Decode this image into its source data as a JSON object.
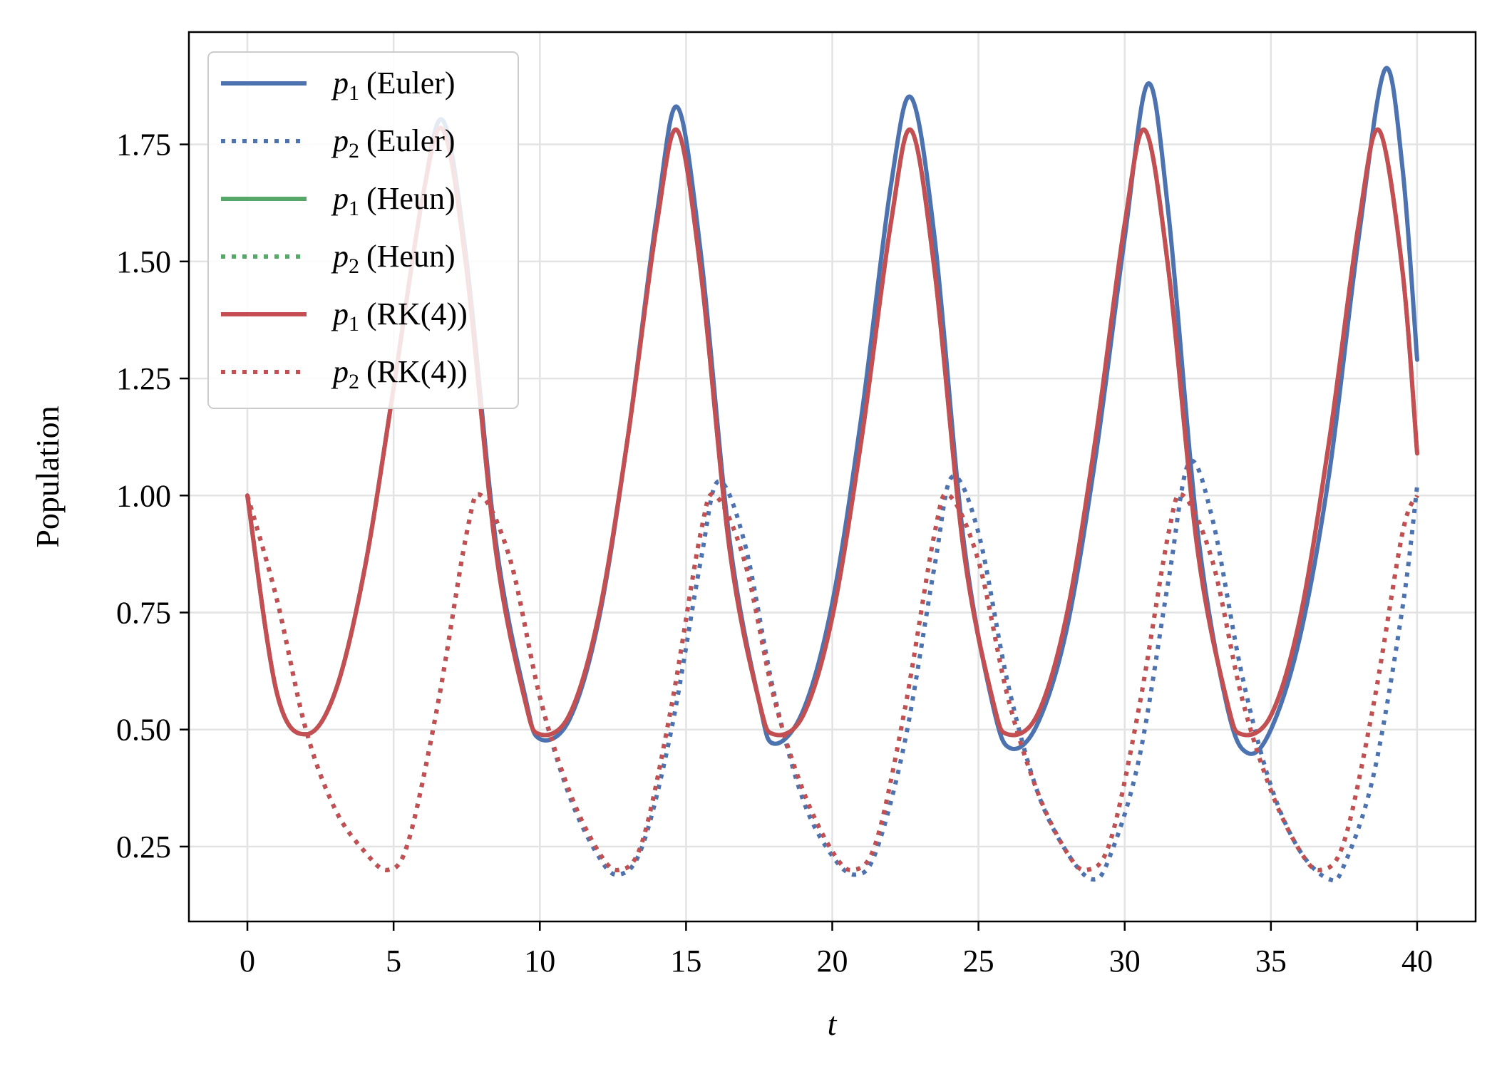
{
  "chart_data": {
    "type": "line",
    "title": "",
    "xlabel": "t",
    "ylabel": "Population",
    "xlim": [
      -2,
      42
    ],
    "ylim": [
      0.09,
      1.99
    ],
    "xticks": [
      0,
      5,
      10,
      15,
      20,
      25,
      30,
      35,
      40
    ],
    "xtick_labels": [
      "0",
      "5",
      "10",
      "15",
      "20",
      "25",
      "30",
      "35",
      "40"
    ],
    "yticks": [
      0.25,
      0.5,
      0.75,
      1.0,
      1.25,
      1.5,
      1.75
    ],
    "ytick_labels": [
      "0.25",
      "0.50",
      "0.75",
      "1.00",
      "1.25",
      "1.50",
      "1.75"
    ],
    "grid": true,
    "legend_position": "top-left",
    "colors": {
      "Euler": "#4c72b0",
      "Heun": "#55a868",
      "RK4": "#c44e52"
    },
    "series": [
      {
        "name": "p1 (Euler)",
        "var": "p",
        "sub": "1",
        "method": "(Euler)",
        "color": "#4c72b0",
        "style": "solid",
        "x": [
          0,
          1,
          2,
          3,
          4,
          5,
          6,
          6.7,
          7.5,
          8.5,
          9.5,
          10,
          11,
          12,
          13,
          14,
          14.7,
          15.5,
          16.5,
          17.5,
          18,
          19,
          20,
          21,
          22,
          22.7,
          23.5,
          24.5,
          25.5,
          26.1,
          27,
          28,
          29,
          30,
          30.8,
          31.5,
          32.5,
          33.5,
          34.2,
          35,
          36,
          37,
          38,
          38.9,
          39.5,
          40
        ],
        "y": [
          1.0,
          0.58,
          0.49,
          0.58,
          0.84,
          1.23,
          1.64,
          1.8,
          1.5,
          0.9,
          0.57,
          0.48,
          0.52,
          0.73,
          1.12,
          1.6,
          1.83,
          1.52,
          0.9,
          0.56,
          0.47,
          0.54,
          0.77,
          1.17,
          1.66,
          1.85,
          1.55,
          0.9,
          0.55,
          0.46,
          0.51,
          0.71,
          1.08,
          1.55,
          1.88,
          1.6,
          0.92,
          0.55,
          0.45,
          0.5,
          0.7,
          1.05,
          1.55,
          1.91,
          1.7,
          1.29
        ]
      },
      {
        "name": "p2 (Euler)",
        "var": "p",
        "sub": "2",
        "method": "(Euler)",
        "color": "#4c72b0",
        "style": "dotted",
        "x": [
          0,
          1,
          2,
          3,
          4,
          4.8,
          5.5,
          6.5,
          7.5,
          8,
          9,
          10,
          11,
          12,
          12.7,
          13.5,
          14.5,
          15.5,
          16.1,
          17,
          18,
          19,
          20,
          20.8,
          21.5,
          22.5,
          23.5,
          24.1,
          25,
          26,
          27,
          28,
          28.9,
          29.5,
          30.5,
          31.5,
          32.2,
          33,
          34,
          35,
          36,
          37,
          37.5,
          38.5,
          39.5,
          40
        ],
        "y": [
          1.0,
          0.78,
          0.5,
          0.33,
          0.24,
          0.2,
          0.26,
          0.55,
          0.92,
          1.0,
          0.86,
          0.57,
          0.36,
          0.23,
          0.19,
          0.25,
          0.5,
          0.86,
          1.03,
          0.9,
          0.58,
          0.35,
          0.23,
          0.19,
          0.24,
          0.48,
          0.85,
          1.04,
          0.92,
          0.6,
          0.37,
          0.24,
          0.18,
          0.23,
          0.44,
          0.82,
          1.07,
          0.95,
          0.62,
          0.38,
          0.24,
          0.18,
          0.21,
          0.4,
          0.76,
          1.02
        ]
      },
      {
        "name": "p1 (Heun)",
        "var": "p",
        "sub": "1",
        "method": "(Heun)",
        "color": "#55a868",
        "style": "solid",
        "x": [
          0,
          1,
          2,
          3,
          4,
          5,
          6,
          6.7,
          7.5,
          8.5,
          9.5,
          10,
          11,
          12,
          13,
          14,
          14.7,
          15.5,
          16.5,
          17.5,
          18,
          19,
          20,
          21,
          22,
          22.7,
          23.5,
          24.5,
          25.5,
          26,
          27,
          28,
          29,
          30,
          30.7,
          31.5,
          32.5,
          33.5,
          34,
          35,
          36,
          37,
          38,
          38.7,
          39.5,
          40
        ],
        "y": [
          1.0,
          0.58,
          0.49,
          0.58,
          0.84,
          1.23,
          1.64,
          1.78,
          1.48,
          0.88,
          0.56,
          0.49,
          0.53,
          0.74,
          1.12,
          1.58,
          1.78,
          1.48,
          0.88,
          0.56,
          0.49,
          0.53,
          0.74,
          1.12,
          1.58,
          1.78,
          1.48,
          0.88,
          0.56,
          0.49,
          0.53,
          0.74,
          1.12,
          1.58,
          1.78,
          1.48,
          0.88,
          0.56,
          0.49,
          0.53,
          0.74,
          1.12,
          1.58,
          1.78,
          1.48,
          1.09
        ]
      },
      {
        "name": "p2 (Heun)",
        "var": "p",
        "sub": "2",
        "method": "(Heun)",
        "color": "#55a868",
        "style": "dotted",
        "x": [
          0,
          1,
          2,
          3,
          4,
          4.8,
          5.5,
          6.5,
          7.5,
          8,
          9,
          10,
          11,
          12,
          12.7,
          13.5,
          14.5,
          15.5,
          16,
          17,
          18,
          19,
          20,
          20.7,
          21.5,
          22.5,
          23.5,
          24,
          25,
          26,
          27,
          28,
          28.7,
          29.5,
          30.5,
          31.5,
          32,
          33,
          34,
          35,
          36,
          36.7,
          37.5,
          38.5,
          39.5,
          40
        ],
        "y": [
          1.0,
          0.78,
          0.5,
          0.33,
          0.24,
          0.2,
          0.26,
          0.55,
          0.92,
          1.0,
          0.86,
          0.57,
          0.37,
          0.24,
          0.2,
          0.26,
          0.55,
          0.92,
          1.0,
          0.86,
          0.57,
          0.37,
          0.24,
          0.2,
          0.26,
          0.55,
          0.92,
          1.0,
          0.86,
          0.57,
          0.37,
          0.24,
          0.2,
          0.26,
          0.55,
          0.92,
          1.0,
          0.86,
          0.57,
          0.37,
          0.24,
          0.2,
          0.26,
          0.55,
          0.92,
          1.0
        ]
      },
      {
        "name": "p1 (RK(4))",
        "var": "p",
        "sub": "1",
        "method": "(RK(4))",
        "color": "#c44e52",
        "style": "solid",
        "x": [
          0,
          1,
          2,
          3,
          4,
          5,
          6,
          6.7,
          7.5,
          8.5,
          9.5,
          10,
          11,
          12,
          13,
          14,
          14.7,
          15.5,
          16.5,
          17.5,
          18,
          19,
          20,
          21,
          22,
          22.7,
          23.5,
          24.5,
          25.5,
          26,
          27,
          28,
          29,
          30,
          30.7,
          31.5,
          32.5,
          33.5,
          34,
          35,
          36,
          37,
          38,
          38.7,
          39.5,
          40
        ],
        "y": [
          1.0,
          0.58,
          0.49,
          0.58,
          0.84,
          1.23,
          1.64,
          1.78,
          1.48,
          0.88,
          0.56,
          0.49,
          0.53,
          0.74,
          1.12,
          1.58,
          1.78,
          1.48,
          0.88,
          0.56,
          0.49,
          0.53,
          0.74,
          1.12,
          1.58,
          1.78,
          1.48,
          0.88,
          0.56,
          0.49,
          0.53,
          0.74,
          1.12,
          1.58,
          1.78,
          1.48,
          0.88,
          0.56,
          0.49,
          0.53,
          0.74,
          1.12,
          1.58,
          1.78,
          1.48,
          1.09
        ]
      },
      {
        "name": "p2 (RK(4))",
        "var": "p",
        "sub": "2",
        "method": "(RK(4))",
        "color": "#c44e52",
        "style": "dotted",
        "x": [
          0,
          1,
          2,
          3,
          4,
          4.8,
          5.5,
          6.5,
          7.5,
          8,
          9,
          10,
          11,
          12,
          12.7,
          13.5,
          14.5,
          15.5,
          16,
          17,
          18,
          19,
          20,
          20.7,
          21.5,
          22.5,
          23.5,
          24,
          25,
          26,
          27,
          28,
          28.7,
          29.5,
          30.5,
          31.5,
          32,
          33,
          34,
          35,
          36,
          36.7,
          37.5,
          38.5,
          39.5,
          40
        ],
        "y": [
          1.0,
          0.78,
          0.5,
          0.33,
          0.24,
          0.2,
          0.26,
          0.55,
          0.92,
          1.0,
          0.86,
          0.57,
          0.37,
          0.24,
          0.2,
          0.26,
          0.55,
          0.92,
          1.0,
          0.86,
          0.57,
          0.37,
          0.24,
          0.2,
          0.26,
          0.55,
          0.92,
          1.0,
          0.86,
          0.57,
          0.37,
          0.24,
          0.2,
          0.26,
          0.55,
          0.92,
          1.0,
          0.86,
          0.57,
          0.37,
          0.24,
          0.2,
          0.26,
          0.55,
          0.92,
          1.0
        ]
      }
    ]
  }
}
